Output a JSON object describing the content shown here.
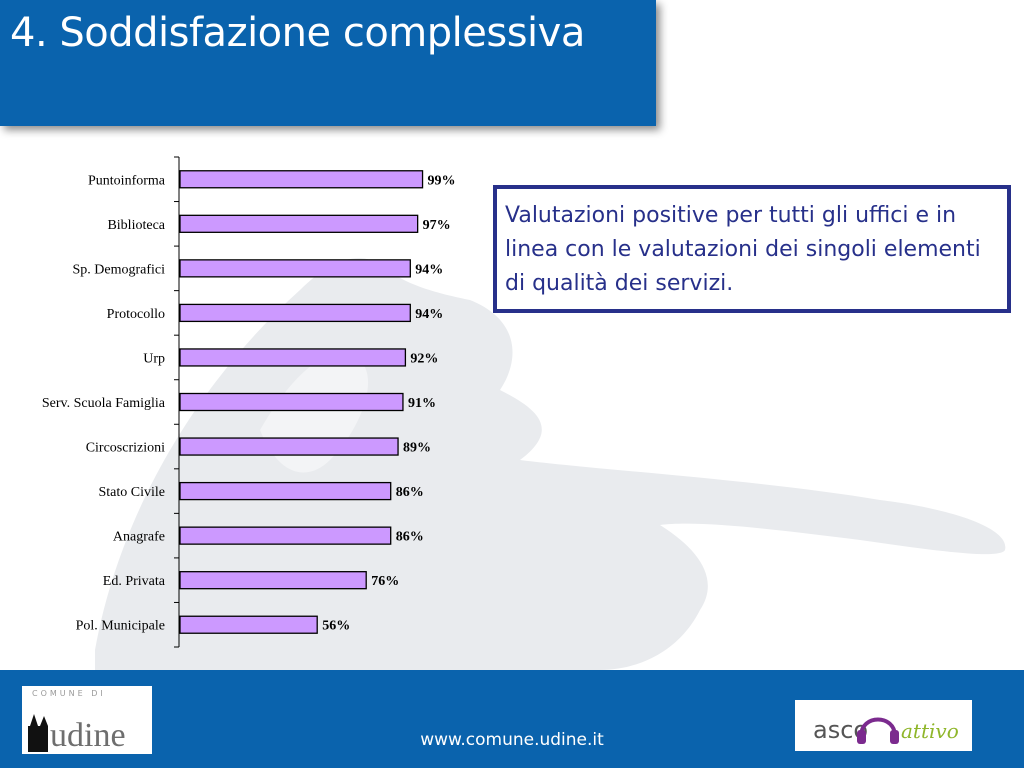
{
  "title": "4. Soddisfazione complessiva",
  "callout": {
    "text": "Valutazioni positive per tutti gli uffici e in linea con le valutazioni dei singoli elementi  di qualità dei servizi."
  },
  "footer": {
    "url": "www.comune.udine.it",
    "logo_left": {
      "top_text": "COMUNE DI",
      "word": "udine"
    },
    "logo_right": {
      "text_a": "asco",
      "text_b": "attivo"
    }
  },
  "colors": {
    "brand_blue": "#0a63ad",
    "bar_fill": "#cc99ff",
    "callout_border": "#27308a"
  },
  "chart_data": {
    "type": "bar",
    "orientation": "horizontal",
    "categories": [
      "Puntoinforma",
      "Biblioteca",
      "Sp. Demografici",
      "Protocollo",
      "Urp",
      "Serv. Scuola Famiglia",
      "Circoscrizioni",
      "Stato Civile",
      "Anagrafe",
      "Ed. Privata",
      "Pol. Municipale"
    ],
    "values": [
      99,
      97,
      94,
      94,
      92,
      91,
      89,
      86,
      86,
      76,
      56
    ],
    "value_labels": [
      "99%",
      "97%",
      "94%",
      "94%",
      "92%",
      "91%",
      "89%",
      "86%",
      "86%",
      "76%",
      "56%"
    ],
    "xlim": [
      0,
      100
    ],
    "grid": false,
    "title": "",
    "xlabel": "",
    "ylabel": ""
  }
}
